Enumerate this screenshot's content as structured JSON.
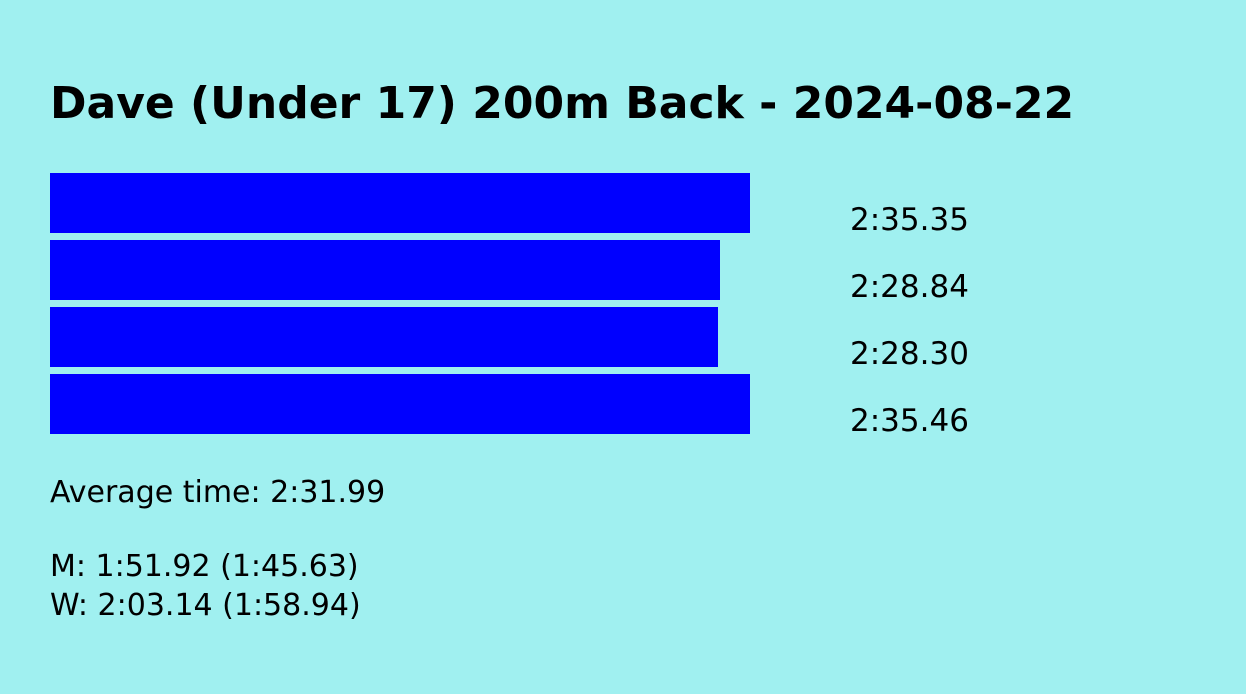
{
  "page": {
    "title": "Dave (Under 17) 200m Back - 2024-08-22",
    "background_color": "#a0f0f0"
  },
  "chart_data": {
    "type": "bar",
    "orientation": "horizontal",
    "bar_color": "#0000ff",
    "categories": [
      "",
      "",
      "",
      ""
    ],
    "values_display": [
      "2:35.35",
      "2:28.84",
      "2:28.30",
      "2:35.46"
    ],
    "values_seconds": [
      155.35,
      148.84,
      148.3,
      155.46
    ]
  },
  "summary": {
    "average": "Average time: 2:31.99",
    "men_record": "M: 1:51.92 (1:45.63)",
    "women_record": "W: 2:03.14 (1:58.94)"
  }
}
